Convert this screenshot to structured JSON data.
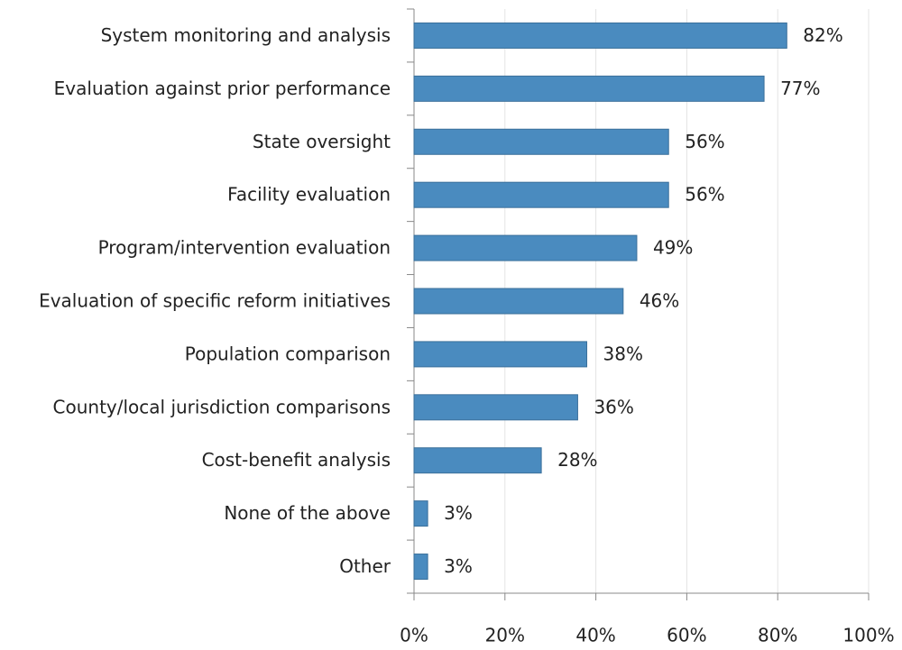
{
  "chart_data": {
    "type": "hbar",
    "categories": [
      "System monitoring and analysis",
      "Evaluation against prior performance",
      "State oversight",
      "Facility evaluation",
      "Program/intervention evaluation",
      "Evaluation of specific reform initiatives",
      "Population comparison",
      "County/local jurisdiction comparisons",
      "Cost-benefit analysis",
      "None of the above",
      "Other"
    ],
    "values": [
      82,
      77,
      56,
      56,
      49,
      46,
      38,
      36,
      28,
      3,
      3
    ],
    "value_labels": [
      "82%",
      "77%",
      "56%",
      "56%",
      "49%",
      "46%",
      "38%",
      "36%",
      "28%",
      "3%",
      "3%"
    ],
    "color": "#4a8bbf",
    "xlim": [
      0,
      100
    ],
    "xticks": [
      {
        "value": 0,
        "label": "0%"
      },
      {
        "value": 20,
        "label": "20%"
      },
      {
        "value": 40,
        "label": "40%"
      },
      {
        "value": 60,
        "label": "60%"
      },
      {
        "value": 80,
        "label": "80%"
      },
      {
        "value": 100,
        "label": "100%"
      }
    ],
    "grid": true
  }
}
